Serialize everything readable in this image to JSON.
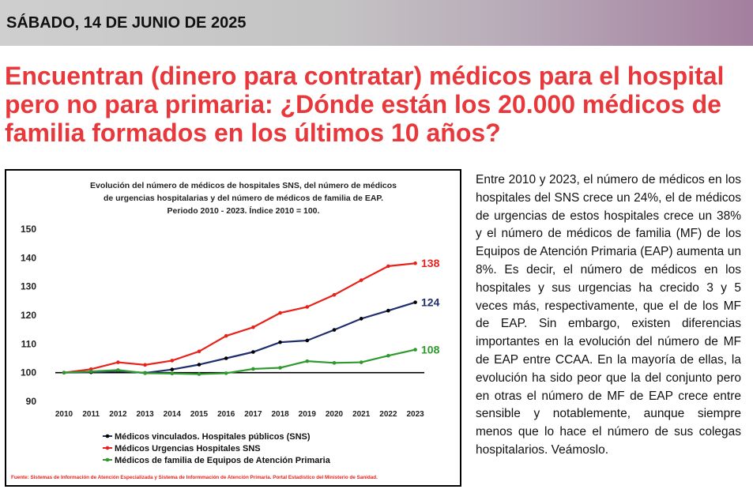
{
  "date_banner": {
    "text": "SÁBADO, 14 DE JUNIO DE 2025"
  },
  "headline": "Encuentran (dinero para contratar) médicos para el hospital pero no para primaria: ¿Dónde están los 20.000 médicos de familia formados en los últimos 10 años?",
  "article": {
    "paragraph": "Entre 2010 y 2023, el número de médicos en los hospitales del SNS crece un 24%, el de médicos de urgencias de estos hospitales crece un 38% y el número de médicos de familia (MF) de los Equipos de Atención Primaria (EAP) aumenta un 8%. Es decir,  el número de médicos en los hospitales y sus urgencias ha crecido 3 y 5 veces más, respectivamente, que el de los MF de EAP. Sin embargo, existen diferencias importantes en la evolución del número de MF de EAP entre CCAA. En la mayoría de ellas, la evolución ha sido peor que la del conjunto pero en otras el número de MF de EAP crece entre sensible y notablemente, aunque siempre menos que lo hace el número de sus colegas hospitalarios. Veámoslo."
  },
  "chart_data": {
    "type": "line",
    "title_lines": [
      "Evolución del número de médicos de hospitales SNS,  del número de médicos",
      "de urgencias hospitalarias y del número de médicos de familia de EAP.",
      "Periodo 2010 - 2023. Índice 2010 = 100."
    ],
    "x": [
      "2010",
      "2011",
      "2012",
      "2013",
      "2014",
      "2015",
      "2016",
      "2017",
      "2018",
      "2019",
      "2020",
      "2021",
      "2022",
      "2023"
    ],
    "ylim": [
      90,
      150
    ],
    "yticks": [
      "150",
      "140",
      "130",
      "120",
      "110",
      "100",
      "90"
    ],
    "series": [
      {
        "name": "Médicos vinculados. Hospitales públicos (SNS)",
        "color": "#1f2d6e",
        "values": [
          100,
          100.1,
          100.6,
          99.9,
          101.1,
          102.8,
          105,
          107.2,
          110.6,
          111.2,
          114.9,
          118.8,
          121.6,
          124.5
        ],
        "end_label": "124"
      },
      {
        "name": "Médicos Urgencias Hospitales SNS",
        "color": "#e8221b",
        "values": [
          100,
          101.2,
          103.6,
          102.7,
          104.2,
          107.4,
          112.8,
          115.8,
          120.8,
          122.9,
          127.1,
          132.2,
          137.1,
          138.1
        ],
        "end_label": "138"
      },
      {
        "name": "Médicos de familia de Equipos de Atención Primaria",
        "color": "#2e9a2e",
        "values": [
          100,
          100.4,
          100.9,
          99.8,
          99.7,
          99.5,
          99.8,
          101.3,
          101.7,
          104,
          103.4,
          103.6,
          105.9,
          108
        ],
        "end_label": "108"
      }
    ],
    "source": "Fuente: Sistemas de Información de Atención Especializada y Sistema de Informmación de Atención Primaria. Portal Estadístico del Ministerio de Sanidad."
  }
}
